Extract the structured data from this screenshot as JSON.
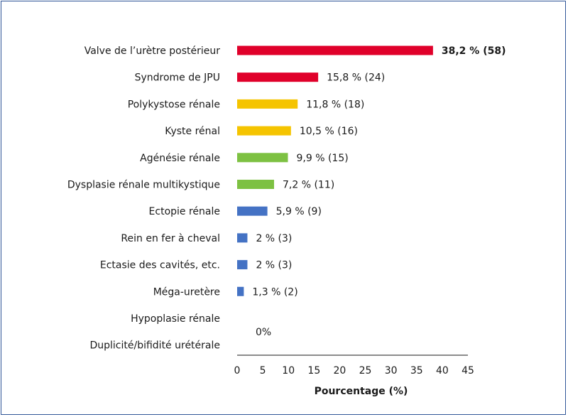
{
  "chart_data": {
    "type": "bar",
    "orientation": "horizontal",
    "categories": [
      "Valve de l’urètre postérieur",
      "Syndrome de JPU",
      "Polykystose rénale",
      "Kyste rénal",
      "Agénésie rénale",
      "Dysplasie rénale multikystique",
      "Ectopie rénale",
      "Rein en fer à cheval",
      "Ectasie des cavités, etc.",
      "Méga-uretère",
      "Hypoplasie rénale",
      "Duplicité/bifidité urétérale"
    ],
    "values": [
      38.2,
      15.8,
      11.8,
      10.5,
      9.9,
      7.2,
      5.9,
      2,
      2,
      1.3,
      0,
      0
    ],
    "value_labels": [
      "38,2 % (58)",
      "15,8 % (24)",
      "11,8 % (18)",
      "10,5 % (16)",
      "9,9 % (15)",
      "7,2 % (11)",
      "5,9 % (9)",
      "2 % (3)",
      "2 % (3)",
      "1,3 % (2)",
      "",
      ""
    ],
    "shared_label": "0%",
    "bar_colors": [
      "#e0002a",
      "#e0002a",
      "#f5c400",
      "#f5c400",
      "#7dc142",
      "#7dc142",
      "#4472c4",
      "#4472c4",
      "#4472c4",
      "#4472c4",
      "#4472c4",
      "#4472c4"
    ],
    "xlabel": "Pourcentage (%)",
    "xticks": [
      "0",
      "5",
      "10",
      "15",
      "20",
      "25",
      "30",
      "35",
      "40",
      "45"
    ],
    "xlim": [
      0,
      45
    ],
    "grid": false,
    "border_color": "#2f5597"
  }
}
